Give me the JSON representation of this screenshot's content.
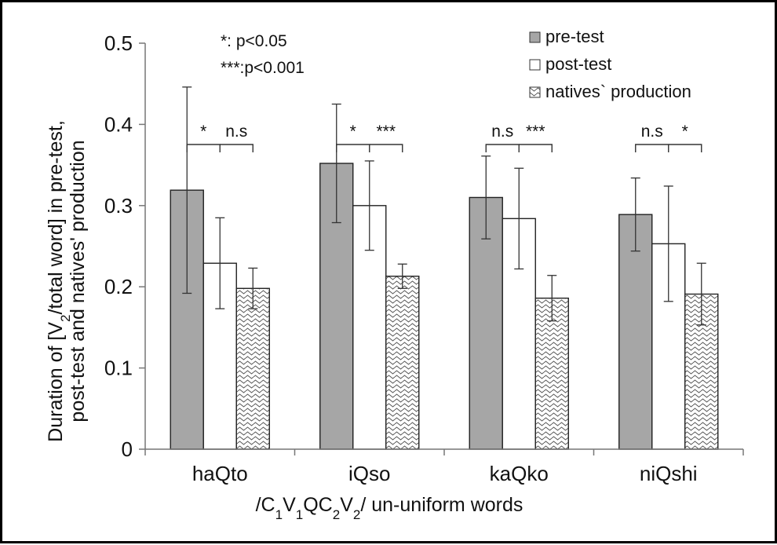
{
  "chart_data": {
    "type": "bar",
    "categories": [
      "haQto",
      "iQso",
      "kaQko",
      "niQshi"
    ],
    "series": [
      {
        "name": "pre-test",
        "values": [
          0.319,
          0.352,
          0.31,
          0.289
        ],
        "errors": [
          0.127,
          0.073,
          0.051,
          0.045
        ],
        "fill": "#a6a6a6",
        "pattern": "solid"
      },
      {
        "name": "post-test",
        "values": [
          0.229,
          0.3,
          0.284,
          0.253
        ],
        "errors": [
          0.056,
          0.055,
          0.062,
          0.071
        ],
        "fill": "#ffffff",
        "pattern": "solid"
      },
      {
        "name": "natives` production",
        "values": [
          0.198,
          0.213,
          0.186,
          0.191
        ],
        "errors": [
          0.025,
          0.015,
          0.028,
          0.038
        ],
        "fill": "#ffffff",
        "pattern": "hatch"
      }
    ],
    "ylim": [
      0,
      0.5
    ],
    "yticks": [
      "0",
      "0.1",
      "0.2",
      "0.3",
      "0.4",
      "0.5"
    ],
    "ytick_values": [
      0,
      0.1,
      0.2,
      0.3,
      0.4,
      0.5
    ],
    "ylabel_line1": "Duration of [V2/total word] in pre-test,",
    "ylabel_line2": "post-test and natives' production",
    "xlabel": "/C1V1QC2V2/ un-uniform words",
    "legend_position": "top-right",
    "significance_note": [
      "*:    p<0.05",
      "***:p<0.001"
    ],
    "comparisons": [
      {
        "category": "haQto",
        "pre_vs_post": "*",
        "post_vs_natives": "n.s"
      },
      {
        "category": "iQso",
        "pre_vs_post": "*",
        "post_vs_natives": "***"
      },
      {
        "category": "kaQko",
        "pre_vs_post": "n.s",
        "post_vs_natives": "***"
      },
      {
        "category": "niQshi",
        "pre_vs_post": "n.s",
        "post_vs_natives": "*"
      }
    ]
  }
}
